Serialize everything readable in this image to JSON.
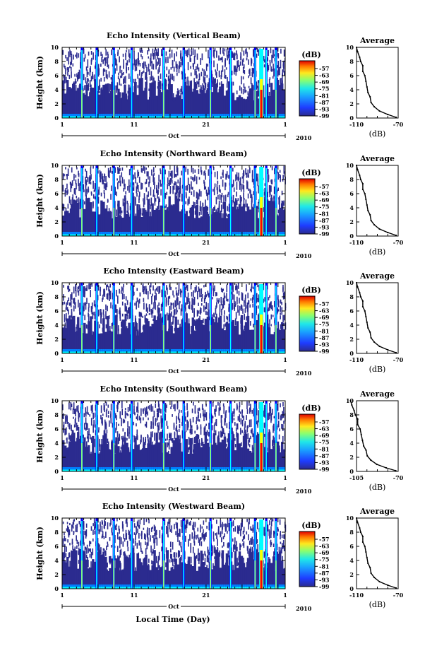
{
  "figure": {
    "xlabel": "Local Time (Day)",
    "month_label": "Oct",
    "year_label": "2010"
  },
  "chart_data": [
    {
      "type": "heatmap",
      "title": "Echo Intensity (Vertical Beam)",
      "ylabel": "Height (km)",
      "x_ticks": [
        "1",
        "11",
        "21",
        "1"
      ],
      "y_ticks": [
        "0",
        "2",
        "4",
        "6",
        "8",
        "10"
      ],
      "ylim": [
        0,
        10
      ],
      "colorbar": {
        "unit": "(dB)",
        "labels": [
          "-57",
          "-63",
          "-69",
          "-75",
          "-81",
          "-87",
          "-93",
          "-99"
        ]
      },
      "profile": {
        "title": "Average",
        "xlabel": "(dB)",
        "x_ticks": [
          "-110",
          "-70"
        ],
        "y_ticks": [
          "0",
          "2",
          "4",
          "6",
          "8",
          "10"
        ],
        "xlim": [
          -110,
          -70
        ]
      }
    },
    {
      "type": "heatmap",
      "title": "Echo Intensity (Northward Beam)",
      "ylabel": "Height (km)",
      "x_ticks": [
        "1",
        "11",
        "21",
        "1"
      ],
      "y_ticks": [
        "0",
        "2",
        "4",
        "6",
        "8",
        "10"
      ],
      "ylim": [
        0,
        10
      ],
      "colorbar": {
        "unit": "(dB)",
        "labels": [
          "-57",
          "-63",
          "-69",
          "-75",
          "-81",
          "-87",
          "-93",
          "-99"
        ]
      },
      "profile": {
        "title": "Average",
        "xlabel": "(dB)",
        "x_ticks": [
          "-110",
          "-70"
        ],
        "y_ticks": [
          "0",
          "2",
          "4",
          "6",
          "8",
          "10"
        ],
        "xlim": [
          -110,
          -70
        ]
      }
    },
    {
      "type": "heatmap",
      "title": "Echo Intensity (Eastward Beam)",
      "ylabel": "Height (km)",
      "x_ticks": [
        "1",
        "11",
        "21",
        "1"
      ],
      "y_ticks": [
        "0",
        "2",
        "4",
        "6",
        "8",
        "10"
      ],
      "ylim": [
        0,
        10
      ],
      "colorbar": {
        "unit": "(dB)",
        "labels": [
          "-57",
          "-63",
          "-69",
          "-75",
          "-81",
          "-87",
          "-93",
          "-99"
        ]
      },
      "profile": {
        "title": "Average",
        "xlabel": "(dB)",
        "x_ticks": [
          "-110",
          "-70"
        ],
        "y_ticks": [
          "0",
          "2",
          "4",
          "6",
          "8",
          "10"
        ],
        "xlim": [
          -110,
          -70
        ]
      }
    },
    {
      "type": "heatmap",
      "title": "Echo Intensity (Southward Beam)",
      "ylabel": "Height (km)",
      "x_ticks": [
        "1",
        "11",
        "21",
        "1"
      ],
      "y_ticks": [
        "0",
        "2",
        "4",
        "6",
        "8",
        "10"
      ],
      "ylim": [
        0,
        10
      ],
      "colorbar": {
        "unit": "(dB)",
        "labels": [
          "-57",
          "-63",
          "-69",
          "-75",
          "-81",
          "-87",
          "-93",
          "-99"
        ]
      },
      "profile": {
        "title": "Average",
        "xlabel": "(dB)",
        "x_ticks": [
          "-105",
          "-70"
        ],
        "y_ticks": [
          "0",
          "2",
          "4",
          "6",
          "8",
          "10"
        ],
        "xlim": [
          -105,
          -70
        ]
      }
    },
    {
      "type": "heatmap",
      "title": "Echo Intensity (Westward Beam)",
      "ylabel": "Height (km)",
      "x_ticks": [
        "1",
        "11",
        "21",
        "1"
      ],
      "y_ticks": [
        "0",
        "2",
        "4",
        "6",
        "8",
        "10"
      ],
      "ylim": [
        0,
        10
      ],
      "colorbar": {
        "unit": "(dB)",
        "labels": [
          "-57",
          "-63",
          "-69",
          "-75",
          "-81",
          "-87",
          "-93",
          "-99"
        ]
      },
      "profile": {
        "title": "Average",
        "xlabel": "(dB)",
        "x_ticks": [
          "-110",
          "-70"
        ],
        "y_ticks": [
          "0",
          "2",
          "4",
          "6",
          "8",
          "10"
        ],
        "xlim": [
          -110,
          -70
        ]
      }
    }
  ],
  "colors": {
    "colormap": [
      "#800000",
      "#ff0000",
      "#ff8000",
      "#ffff00",
      "#80ff80",
      "#00ffff",
      "#0080ff",
      "#0000ff",
      "#2b2b8f"
    ],
    "low_echo": "#2b2b8f"
  }
}
